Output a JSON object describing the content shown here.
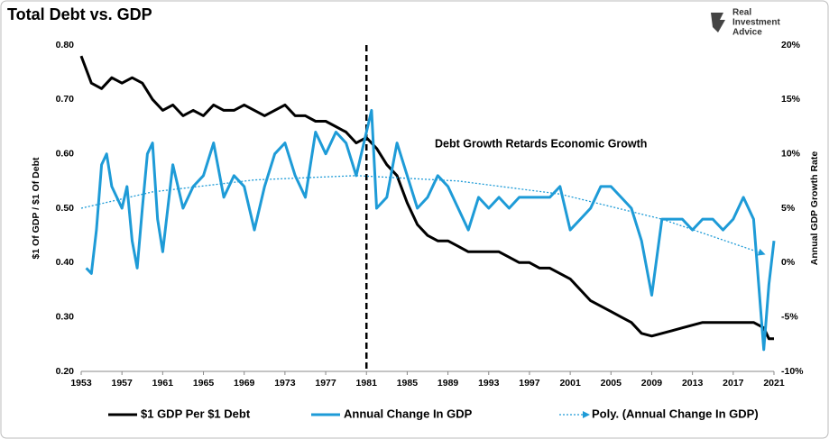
{
  "chart_data": {
    "type": "line",
    "title": "Total Debt vs. GDP",
    "logo": [
      "Real",
      "Investment",
      "Advice"
    ],
    "ylabel": "$1 Of GDP / $1 Of Debt",
    "y2label": "Annual GDP Growth Rate",
    "annotation": "Debt Growth Retards Economic Growth",
    "vline": 1981,
    "xlim": [
      1953,
      2021
    ],
    "xticks": [
      1953,
      1957,
      1961,
      1965,
      1969,
      1973,
      1977,
      1981,
      1985,
      1989,
      1993,
      1997,
      2001,
      2005,
      2009,
      2013,
      2017,
      2021
    ],
    "ylim": [
      0.2,
      0.8
    ],
    "yticks": [
      {
        "value": 0.2,
        "label": "0.20"
      },
      {
        "value": 0.3,
        "label": "0.30"
      },
      {
        "value": 0.4,
        "label": "0.40"
      },
      {
        "value": 0.5,
        "label": "0.50"
      },
      {
        "value": 0.6,
        "label": "0.60"
      },
      {
        "value": 0.7,
        "label": "0.70"
      },
      {
        "value": 0.8,
        "label": "0.80"
      }
    ],
    "y2lim": [
      -10,
      20
    ],
    "y2ticks": [
      {
        "value": -10,
        "label": "-10%"
      },
      {
        "value": -5,
        "label": "-5%"
      },
      {
        "value": 0,
        "label": "0%"
      },
      {
        "value": 5,
        "label": "5%"
      },
      {
        "value": 10,
        "label": "10%"
      },
      {
        "value": 15,
        "label": "15%"
      },
      {
        "value": 20,
        "label": "20%"
      }
    ],
    "series": [
      {
        "name": "$1 GDP Per $1 Debt",
        "color": "#000000",
        "line_style": "solid",
        "x": [
          1953,
          1954,
          1955,
          1956,
          1957,
          1958,
          1959,
          1960,
          1961,
          1962,
          1963,
          1964,
          1965,
          1966,
          1967,
          1968,
          1969,
          1970,
          1971,
          1972,
          1973,
          1974,
          1975,
          1976,
          1977,
          1978,
          1979,
          1980,
          1981,
          1982,
          1983,
          1984,
          1985,
          1986,
          1987,
          1988,
          1989,
          1990,
          1991,
          1992,
          1993,
          1994,
          1995,
          1996,
          1997,
          1998,
          1999,
          2000,
          2001,
          2002,
          2003,
          2004,
          2005,
          2006,
          2007,
          2008,
          2009,
          2010,
          2011,
          2012,
          2013,
          2014,
          2015,
          2016,
          2017,
          2018,
          2019,
          2020,
          2020.5,
          2021
        ],
        "values": [
          0.78,
          0.73,
          0.72,
          0.74,
          0.73,
          0.74,
          0.73,
          0.7,
          0.68,
          0.69,
          0.67,
          0.68,
          0.67,
          0.69,
          0.68,
          0.68,
          0.69,
          0.68,
          0.67,
          0.68,
          0.69,
          0.67,
          0.67,
          0.66,
          0.66,
          0.65,
          0.64,
          0.62,
          0.63,
          0.61,
          0.58,
          0.56,
          0.51,
          0.47,
          0.45,
          0.44,
          0.44,
          0.43,
          0.42,
          0.42,
          0.42,
          0.42,
          0.41,
          0.4,
          0.4,
          0.39,
          0.39,
          0.38,
          0.37,
          0.35,
          0.33,
          0.32,
          0.31,
          0.3,
          0.29,
          0.27,
          0.265,
          0.27,
          0.275,
          0.28,
          0.285,
          0.29,
          0.29,
          0.29,
          0.29,
          0.29,
          0.29,
          0.28,
          0.26,
          0.26
        ]
      },
      {
        "name": "Annual Change In GDP",
        "color": "#1e9bd7",
        "line_style": "solid",
        "axis": "y2",
        "x": [
          1953.5,
          1954,
          1954.5,
          1955,
          1955.5,
          1956,
          1957,
          1957.5,
          1958,
          1958.5,
          1959,
          1959.5,
          1960,
          1960.5,
          1961,
          1961.5,
          1962,
          1963,
          1964,
          1965,
          1966,
          1967,
          1968,
          1969,
          1970,
          1971,
          1972,
          1973,
          1974,
          1975,
          1976,
          1977,
          1978,
          1979,
          1980,
          1981,
          1981.5,
          1982,
          1983,
          1984,
          1985,
          1986,
          1987,
          1988,
          1989,
          1990,
          1991,
          1992,
          1993,
          1994,
          1995,
          1996,
          1997,
          1998,
          1999,
          2000,
          2001,
          2002,
          2003,
          2004,
          2005,
          2006,
          2007,
          2008,
          2009,
          2010,
          2011,
          2012,
          2013,
          2014,
          2015,
          2016,
          2017,
          2018,
          2019,
          2020,
          2020.5,
          2021
        ],
        "values": [
          -0.5,
          -1,
          3,
          9,
          10,
          7,
          5,
          7,
          2,
          -0.5,
          5,
          10,
          11,
          4,
          1,
          5,
          9,
          5,
          7,
          8,
          11,
          6,
          8,
          7,
          3,
          7,
          10,
          11,
          8,
          6,
          12,
          10,
          12,
          11,
          8,
          12,
          14,
          5,
          6,
          11,
          8,
          5,
          6,
          8,
          7,
          5,
          3,
          6,
          5,
          6,
          5,
          6,
          6,
          6,
          6,
          7,
          3,
          4,
          5,
          7,
          7,
          6,
          5,
          2,
          -3,
          4,
          4,
          4,
          3,
          4,
          4,
          3,
          4,
          6,
          4,
          -8,
          -2,
          2
        ]
      },
      {
        "name": "Poly. (Annual Change In GDP)",
        "color": "#1e9bd7",
        "line_style": "dotted",
        "axis": "y2",
        "x": [
          1953,
          1960,
          1970,
          1980,
          1990,
          2000,
          2010,
          2020
        ],
        "values": [
          5,
          6.5,
          7.6,
          8,
          7.5,
          6.3,
          4,
          0.8
        ]
      }
    ]
  }
}
